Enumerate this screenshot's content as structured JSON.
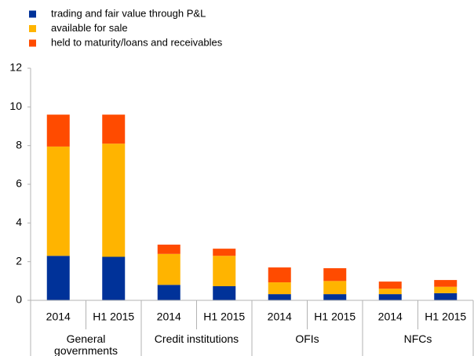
{
  "chart_data": {
    "type": "stacked_bar",
    "categories": [
      "2014",
      "H1 2015",
      "2014",
      "H1 2015",
      "2014",
      "H1 2015",
      "2014",
      "H1 2015"
    ],
    "groups": [
      "General governments",
      "Credit institutions",
      "OFIs",
      "NFCs"
    ],
    "series": [
      {
        "name": "trading and fair value through P&L",
        "color": "#003299",
        "values": [
          2.3,
          2.25,
          0.8,
          0.73,
          0.32,
          0.32,
          0.32,
          0.37
        ]
      },
      {
        "name": "available for sale",
        "color": "#ffb400",
        "values": [
          5.65,
          5.85,
          1.6,
          1.57,
          0.61,
          0.68,
          0.28,
          0.33
        ]
      },
      {
        "name": "held to maturity/loans and receivables",
        "color": "#ff4b00",
        "values": [
          1.65,
          1.5,
          0.48,
          0.37,
          0.77,
          0.66,
          0.37,
          0.35
        ]
      }
    ],
    "ylim": [
      0,
      12
    ],
    "yticks": [
      0,
      2,
      4,
      6,
      8,
      10,
      12
    ],
    "legend": "top-left"
  }
}
